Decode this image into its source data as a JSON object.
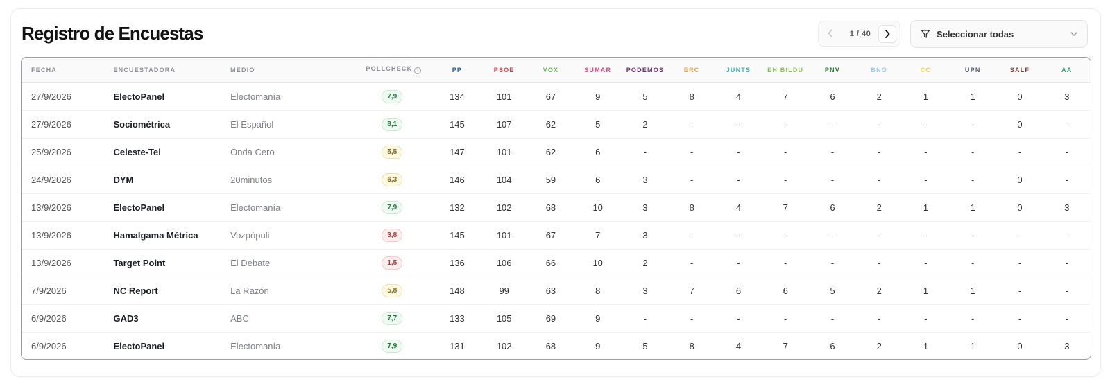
{
  "title": "Registro de Encuestas",
  "pagination": {
    "current": "1",
    "sep": " / ",
    "total": "40"
  },
  "filter": {
    "label": "Seleccionar todas"
  },
  "columns": {
    "fecha": "FECHA",
    "encuestadora": "ENCUESTADORA",
    "medio": "MEDIO",
    "pollcheck": "POLLCHECK",
    "parties": [
      {
        "name": "PP",
        "color": "#1b5fb8"
      },
      {
        "name": "PSOE",
        "color": "#e03a3e"
      },
      {
        "name": "VOX",
        "color": "#5fb84a"
      },
      {
        "name": "SUMAR",
        "color": "#e0457b"
      },
      {
        "name": "PODEMOS",
        "color": "#6b2d6e"
      },
      {
        "name": "ERC",
        "color": "#f2a03b"
      },
      {
        "name": "JUNTS",
        "color": "#34b8b0"
      },
      {
        "name": "EH BILDU",
        "color": "#8cc152"
      },
      {
        "name": "PNV",
        "color": "#1f7a2e"
      },
      {
        "name": "BNG",
        "color": "#9ec9e2"
      },
      {
        "name": "CC",
        "color": "#f5d23b"
      },
      {
        "name": "UPN",
        "color": "#4a5568"
      },
      {
        "name": "SALF",
        "color": "#8b3a3a"
      },
      {
        "name": "AA",
        "color": "#2f9e73"
      }
    ]
  },
  "rows": [
    {
      "fecha": "27/9/2026",
      "encuestadora": "ElectoPanel",
      "medio": "Electomanía",
      "pollcheck": "7,9",
      "level": "green",
      "seats": [
        "134",
        "101",
        "67",
        "9",
        "5",
        "8",
        "4",
        "7",
        "6",
        "2",
        "1",
        "1",
        "0",
        "3"
      ]
    },
    {
      "fecha": "27/9/2026",
      "encuestadora": "Sociométrica",
      "medio": "El Español",
      "pollcheck": "8,1",
      "level": "green",
      "seats": [
        "145",
        "107",
        "62",
        "5",
        "2",
        "-",
        "-",
        "-",
        "-",
        "-",
        "-",
        "-",
        "0",
        "-"
      ]
    },
    {
      "fecha": "25/9/2026",
      "encuestadora": "Celeste-Tel",
      "medio": "Onda Cero",
      "pollcheck": "5,5",
      "level": "yellow",
      "seats": [
        "147",
        "101",
        "62",
        "6",
        "-",
        "-",
        "-",
        "-",
        "-",
        "-",
        "-",
        "-",
        "-",
        "-"
      ]
    },
    {
      "fecha": "24/9/2026",
      "encuestadora": "DYM",
      "medio": "20minutos",
      "pollcheck": "6,3",
      "level": "yellow",
      "seats": [
        "146",
        "104",
        "59",
        "6",
        "3",
        "-",
        "-",
        "-",
        "-",
        "-",
        "-",
        "-",
        "0",
        "-"
      ]
    },
    {
      "fecha": "13/9/2026",
      "encuestadora": "ElectoPanel",
      "medio": "Electomanía",
      "pollcheck": "7,9",
      "level": "green",
      "seats": [
        "132",
        "102",
        "68",
        "10",
        "3",
        "8",
        "4",
        "7",
        "6",
        "2",
        "1",
        "1",
        "0",
        "3"
      ]
    },
    {
      "fecha": "13/9/2026",
      "encuestadora": "Hamalgama Métrica",
      "medio": "Vozpópuli",
      "pollcheck": "3,8",
      "level": "red",
      "seats": [
        "145",
        "101",
        "67",
        "7",
        "3",
        "-",
        "-",
        "-",
        "-",
        "-",
        "-",
        "-",
        "-",
        "-"
      ]
    },
    {
      "fecha": "13/9/2026",
      "encuestadora": "Target Point",
      "medio": "El Debate",
      "pollcheck": "1,5",
      "level": "red",
      "seats": [
        "136",
        "106",
        "66",
        "10",
        "2",
        "-",
        "-",
        "-",
        "-",
        "-",
        "-",
        "-",
        "-",
        "-"
      ]
    },
    {
      "fecha": "7/9/2026",
      "encuestadora": "NC Report",
      "medio": "La Razón",
      "pollcheck": "5,8",
      "level": "yellow",
      "seats": [
        "148",
        "99",
        "63",
        "8",
        "3",
        "7",
        "6",
        "6",
        "5",
        "2",
        "1",
        "1",
        "-",
        "-"
      ]
    },
    {
      "fecha": "6/9/2026",
      "encuestadora": "GAD3",
      "medio": "ABC",
      "pollcheck": "7,7",
      "level": "green",
      "seats": [
        "133",
        "105",
        "69",
        "9",
        "-",
        "-",
        "-",
        "-",
        "-",
        "-",
        "-",
        "-",
        "-",
        "-"
      ]
    },
    {
      "fecha": "6/9/2026",
      "encuestadora": "ElectoPanel",
      "medio": "Electomanía",
      "pollcheck": "7,9",
      "level": "green",
      "seats": [
        "131",
        "102",
        "68",
        "9",
        "5",
        "8",
        "4",
        "7",
        "6",
        "2",
        "1",
        "1",
        "0",
        "3"
      ]
    }
  ]
}
